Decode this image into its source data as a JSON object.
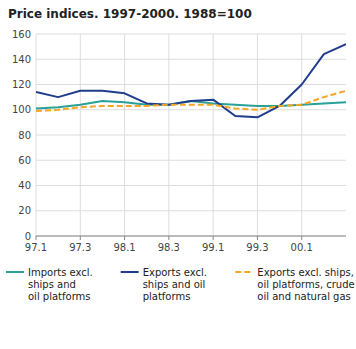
{
  "chart_data": {
    "type": "line",
    "title": "Price indices. 1997-2000. 1988=100",
    "categories": [
      "97.1",
      null,
      "97.3",
      null,
      "98.1",
      null,
      "98.3",
      null,
      "99.1",
      null,
      "99.3",
      null,
      "00.1",
      null,
      null
    ],
    "series": [
      {
        "name": "Imports excl.\nships and\noil platforms",
        "color": "#2aa198",
        "line_style": "solid",
        "values": [
          101,
          102,
          104,
          107,
          106,
          104,
          104,
          107,
          105,
          104,
          103,
          103,
          104,
          105,
          106
        ]
      },
      {
        "name": "Exports excl.\nships and oil\nplatforms",
        "color": "#1f3d8c",
        "line_style": "solid",
        "values": [
          114,
          110,
          115,
          115,
          113,
          105,
          104,
          107,
          108,
          95,
          94,
          103,
          120,
          144,
          152
        ]
      },
      {
        "name": "Exports excl. ships,\noil platforms, crude\noil and natural gas",
        "color": "#f5a623",
        "line_style": "dashed",
        "values": [
          99,
          100,
          102,
          103,
          103,
          103,
          104,
          104,
          104,
          101,
          100,
          103,
          104,
          110,
          115
        ]
      }
    ],
    "ylim": [
      0,
      160
    ],
    "yticks": [
      0,
      20,
      40,
      60,
      80,
      100,
      120,
      140,
      160
    ],
    "grid": true,
    "legend": "bottom"
  }
}
